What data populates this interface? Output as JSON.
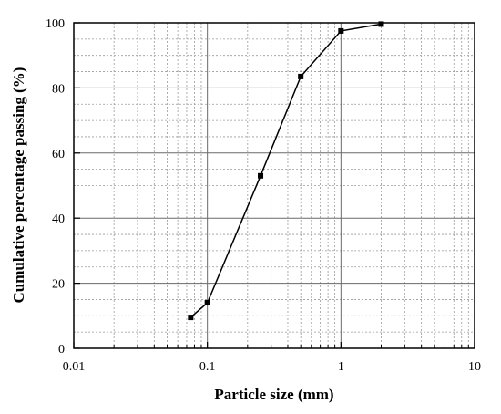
{
  "chart_data": {
    "type": "line",
    "x_scale": "log",
    "xlim": [
      0.01,
      10
    ],
    "ylim": [
      0,
      100
    ],
    "xlabel": "Particle size (mm)",
    "ylabel": "Cumulative percentage passing (%)",
    "x_ticks": [
      "0.01",
      "0.1",
      "1",
      "10"
    ],
    "y_ticks": [
      "0",
      "20",
      "40",
      "60",
      "80",
      "100"
    ],
    "grid": true,
    "series": [
      {
        "x": [
          0.075,
          0.1,
          0.25,
          0.5,
          1.0,
          2.0
        ],
        "y": [
          9.5,
          14,
          53,
          83.5,
          97.5,
          99.6
        ]
      }
    ]
  }
}
